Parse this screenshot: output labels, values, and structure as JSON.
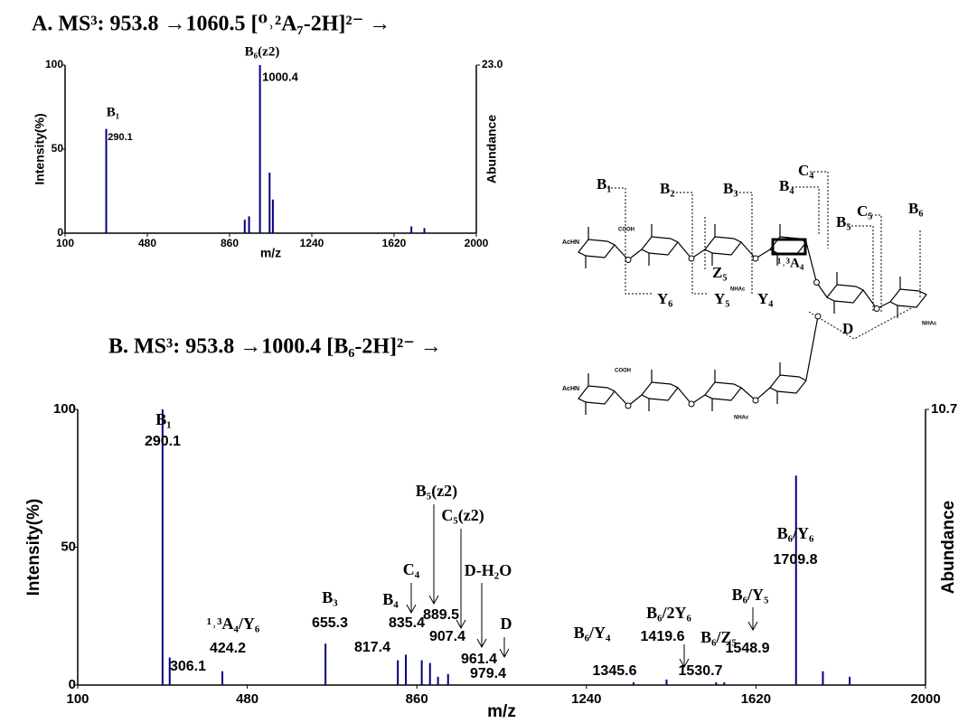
{
  "chart_data": [
    {
      "type": "spectrum",
      "title": "A. MS³: 953.8 →1060.5 [⁰˒²A₇-2H]²⁻ →",
      "x_label": "m/z",
      "y_label": "Intensity(%)",
      "y2_label": "Abundance",
      "xlim": [
        100,
        2000
      ],
      "xticks": [
        100,
        480,
        860,
        1240,
        1620,
        2000
      ],
      "ylim": [
        0,
        100
      ],
      "yticks": [
        0,
        50,
        100
      ],
      "y2lim": [
        0,
        23
      ],
      "y2ticks": [
        {
          "value": 23,
          "label": "23.0"
        }
      ],
      "color": "#000080",
      "x": [
        290.1,
        930,
        950,
        1000.4,
        1045,
        1060,
        1700,
        1760
      ],
      "values": [
        62,
        8,
        10,
        100,
        36,
        20,
        4,
        3
      ],
      "annotations": [
        "B₆(z2)",
        1000.4,
        "B₁",
        290.1
      ]
    },
    {
      "type": "spectrum",
      "title": "B. MS³: 953.8 →1000.4 [B₆-2H]²⁻ →",
      "x_label": "m/z",
      "y_label": "Intensity(%)",
      "y2_label": "Abundance",
      "xlim": [
        100,
        2000
      ],
      "xticks": [
        100,
        480,
        860,
        1240,
        1620,
        2000
      ],
      "ylim": [
        0,
        100
      ],
      "yticks": [
        0,
        50,
        100
      ],
      "y2lim": [
        0,
        10.7
      ],
      "y2ticks": [
        10.7
      ],
      "color": "#000080",
      "x": [
        290.1,
        306.1,
        424.2,
        655.3,
        817.4,
        835.4,
        871,
        889.5,
        907.4,
        930,
        1345.6,
        1419.6,
        1530.7,
        1548.9,
        1709.8,
        1770,
        1830
      ],
      "values": [
        100,
        10,
        5,
        15,
        9,
        11,
        9,
        8,
        3,
        4,
        1,
        2,
        1,
        1,
        76,
        5,
        3
      ],
      "annotations": [
        "B₁",
        290.1,
        306.1,
        "¹˒³A₄/Y₆",
        424.2,
        "B₃",
        655.3,
        "C₄",
        "B₄",
        835.4,
        817.4,
        "B₅(z2)",
        889.5,
        "C₅(z2)",
        907.4,
        "D-H₂O",
        961.4,
        "D",
        979.4,
        "B₆/Y₄",
        1345.6,
        "B₆/2Y₆",
        1419.6,
        "B₆/Z₅",
        1530.7,
        "B₆/Y₅",
        1548.9,
        "B₆/Y₆",
        1709.8
      ]
    }
  ],
  "diagram": {
    "labels": [
      "B₁",
      "B₂",
      "B₃",
      "B₄",
      "C₄",
      "B₅",
      "C₅",
      "B₆",
      "Z₅",
      "Y₆",
      "Y₅",
      "Y₄",
      "¹˒³A₄",
      "D",
      "AcHN",
      "COOH",
      "NHAc",
      "NHAc",
      "AcHN",
      "COOH",
      "NHAc"
    ]
  }
}
